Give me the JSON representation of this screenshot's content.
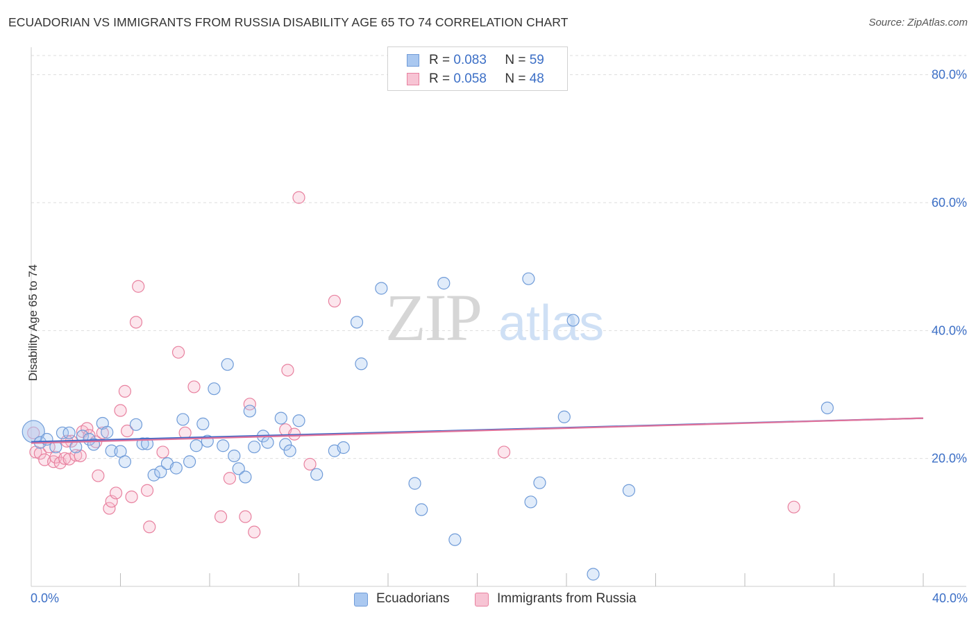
{
  "title": "ECUADORIAN VS IMMIGRANTS FROM RUSSIA DISABILITY AGE 65 TO 74 CORRELATION CHART",
  "source": "Source: ZipAtlas.com",
  "watermark": {
    "zip": "ZIP",
    "atlas": "atlas"
  },
  "legend": {
    "rows": [
      {
        "r_label": "R = ",
        "r_value": "0.083",
        "n_label": "N = ",
        "n_value": "59"
      },
      {
        "r_label": "R = ",
        "r_value": "0.058",
        "n_label": "N = ",
        "n_value": "48"
      }
    ]
  },
  "bottom_legend": {
    "series1": "Ecuadorians",
    "series2": "Immigrants from Russia"
  },
  "x_axis": {
    "min_label": "0.0%",
    "max_label": "40.0%"
  },
  "colors": {
    "blue_fill": "#aac8f0",
    "blue_stroke": "#6f9bd8",
    "blue_line": "#3f68c6",
    "pink_fill": "#f7b8cc",
    "pink_stroke": "#e8819f",
    "pink_line": "#e0729a",
    "axis_text": "#3c6fc6",
    "grid": "#dddddd"
  },
  "chart_data": {
    "type": "scatter",
    "title": "ECUADORIAN VS IMMIGRANTS FROM RUSSIA DISABILITY AGE 65 TO 74 CORRELATION CHART",
    "xlabel": "",
    "ylabel": "Disability Age 65 to 74",
    "xlim": [
      0,
      40
    ],
    "ylim": [
      0,
      83
    ],
    "y_ticks": [
      20,
      40,
      60,
      80
    ],
    "y_tick_labels": [
      "20.0%",
      "40.0%",
      "60.0%",
      "80.0%"
    ],
    "x_tick_labels": [
      "0.0%",
      "40.0%"
    ],
    "grid": true,
    "series": [
      {
        "name": "Ecuadorians",
        "R": 0.083,
        "N": 59,
        "trend": {
          "x": [
            0,
            40
          ],
          "y": [
            22.6,
            26.3
          ]
        },
        "points": [
          {
            "x": 0.1,
            "y": 24.2,
            "big": true
          },
          {
            "x": 0.4,
            "y": 22.5
          },
          {
            "x": 0.7,
            "y": 23.0
          },
          {
            "x": 1.1,
            "y": 21.8
          },
          {
            "x": 1.4,
            "y": 24.0
          },
          {
            "x": 1.7,
            "y": 24.0
          },
          {
            "x": 2.0,
            "y": 21.8
          },
          {
            "x": 2.3,
            "y": 23.5
          },
          {
            "x": 2.6,
            "y": 23.0
          },
          {
            "x": 2.8,
            "y": 22.2
          },
          {
            "x": 3.2,
            "y": 25.5
          },
          {
            "x": 3.4,
            "y": 24.1
          },
          {
            "x": 3.6,
            "y": 21.2
          },
          {
            "x": 4.0,
            "y": 21.1
          },
          {
            "x": 4.2,
            "y": 19.5
          },
          {
            "x": 4.7,
            "y": 25.3
          },
          {
            "x": 5.0,
            "y": 22.3
          },
          {
            "x": 5.2,
            "y": 22.3
          },
          {
            "x": 5.5,
            "y": 17.4
          },
          {
            "x": 5.8,
            "y": 17.9
          },
          {
            "x": 6.1,
            "y": 19.2
          },
          {
            "x": 6.5,
            "y": 18.5
          },
          {
            "x": 6.8,
            "y": 26.1
          },
          {
            "x": 7.1,
            "y": 19.5
          },
          {
            "x": 7.4,
            "y": 22.0
          },
          {
            "x": 7.7,
            "y": 25.4
          },
          {
            "x": 7.9,
            "y": 22.7
          },
          {
            "x": 8.2,
            "y": 30.9
          },
          {
            "x": 8.6,
            "y": 22.0
          },
          {
            "x": 8.8,
            "y": 34.7
          },
          {
            "x": 9.1,
            "y": 20.4
          },
          {
            "x": 9.3,
            "y": 18.4
          },
          {
            "x": 9.6,
            "y": 17.1
          },
          {
            "x": 9.8,
            "y": 27.4
          },
          {
            "x": 10.0,
            "y": 21.8
          },
          {
            "x": 10.4,
            "y": 23.5
          },
          {
            "x": 10.6,
            "y": 22.5
          },
          {
            "x": 11.2,
            "y": 26.3
          },
          {
            "x": 11.4,
            "y": 22.2
          },
          {
            "x": 11.6,
            "y": 21.2
          },
          {
            "x": 12.0,
            "y": 25.9
          },
          {
            "x": 12.8,
            "y": 17.5
          },
          {
            "x": 13.6,
            "y": 21.2
          },
          {
            "x": 14.0,
            "y": 21.7
          },
          {
            "x": 14.6,
            "y": 41.3
          },
          {
            "x": 14.8,
            "y": 34.8
          },
          {
            "x": 15.7,
            "y": 46.6
          },
          {
            "x": 17.2,
            "y": 16.1
          },
          {
            "x": 17.5,
            "y": 12.0
          },
          {
            "x": 18.5,
            "y": 47.4
          },
          {
            "x": 19.0,
            "y": 7.3
          },
          {
            "x": 22.3,
            "y": 48.1
          },
          {
            "x": 22.8,
            "y": 16.2
          },
          {
            "x": 22.4,
            "y": 13.2
          },
          {
            "x": 23.9,
            "y": 26.5
          },
          {
            "x": 24.3,
            "y": 41.6
          },
          {
            "x": 25.2,
            "y": 1.9
          },
          {
            "x": 26.8,
            "y": 15.0
          },
          {
            "x": 35.7,
            "y": 27.9
          }
        ]
      },
      {
        "name": "Immigrants from Russia",
        "R": 0.058,
        "N": 48,
        "trend": {
          "x": [
            0,
            40
          ],
          "y": [
            22.4,
            26.3
          ]
        },
        "points": [
          {
            "x": 0.2,
            "y": 21.0
          },
          {
            "x": 0.4,
            "y": 20.8
          },
          {
            "x": 0.6,
            "y": 19.8
          },
          {
            "x": 0.8,
            "y": 21.8
          },
          {
            "x": 1.0,
            "y": 19.5
          },
          {
            "x": 1.1,
            "y": 20.2
          },
          {
            "x": 1.3,
            "y": 19.3
          },
          {
            "x": 1.5,
            "y": 20.0
          },
          {
            "x": 1.7,
            "y": 19.9
          },
          {
            "x": 1.8,
            "y": 22.7
          },
          {
            "x": 2.0,
            "y": 20.5
          },
          {
            "x": 2.2,
            "y": 20.4
          },
          {
            "x": 2.3,
            "y": 24.2
          },
          {
            "x": 2.5,
            "y": 24.7
          },
          {
            "x": 2.6,
            "y": 23.6
          },
          {
            "x": 2.9,
            "y": 22.6
          },
          {
            "x": 3.0,
            "y": 17.3
          },
          {
            "x": 3.2,
            "y": 24.0
          },
          {
            "x": 3.5,
            "y": 12.2
          },
          {
            "x": 3.6,
            "y": 13.3
          },
          {
            "x": 3.8,
            "y": 14.6
          },
          {
            "x": 4.0,
            "y": 27.5
          },
          {
            "x": 4.2,
            "y": 30.5
          },
          {
            "x": 4.3,
            "y": 24.3
          },
          {
            "x": 4.5,
            "y": 14.0
          },
          {
            "x": 4.7,
            "y": 41.3
          },
          {
            "x": 4.8,
            "y": 46.9
          },
          {
            "x": 5.2,
            "y": 15.0
          },
          {
            "x": 5.3,
            "y": 9.3
          },
          {
            "x": 5.9,
            "y": 21.0
          },
          {
            "x": 6.6,
            "y": 36.6
          },
          {
            "x": 6.9,
            "y": 24.0
          },
          {
            "x": 7.3,
            "y": 31.2
          },
          {
            "x": 8.9,
            "y": 16.9
          },
          {
            "x": 8.5,
            "y": 10.9
          },
          {
            "x": 9.8,
            "y": 28.5
          },
          {
            "x": 9.6,
            "y": 10.9
          },
          {
            "x": 10.0,
            "y": 8.5
          },
          {
            "x": 11.4,
            "y": 24.5
          },
          {
            "x": 11.5,
            "y": 33.8
          },
          {
            "x": 11.8,
            "y": 23.8
          },
          {
            "x": 12.0,
            "y": 60.8
          },
          {
            "x": 12.5,
            "y": 19.1
          },
          {
            "x": 13.6,
            "y": 44.6
          },
          {
            "x": 21.2,
            "y": 21.0
          },
          {
            "x": 34.2,
            "y": 12.4
          },
          {
            "x": 0.1,
            "y": 24.0
          },
          {
            "x": 1.6,
            "y": 22.7
          }
        ]
      }
    ]
  }
}
